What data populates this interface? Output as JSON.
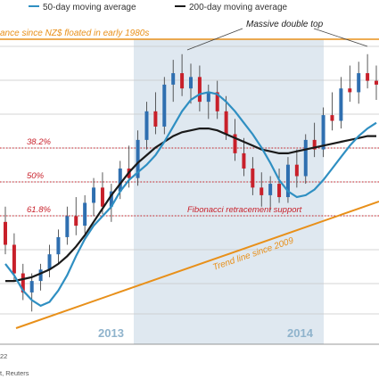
{
  "legend": {
    "ma50_label": "50-day moving average",
    "ma200_label": "200-day moving average"
  },
  "colors": {
    "ma50": "#2f8fc2",
    "ma200": "#1a1a1a",
    "up_candle": "#2f6fb0",
    "down_candle": "#c8202a",
    "accent": "#e8901a",
    "fib": "#c8202a",
    "shade": "#dfe8f0"
  },
  "annotations": {
    "high_since_float": "ance since NZ$ floated in early 1980s",
    "double_top": "Massive double top",
    "fib_support": "Fibonacci retracement support",
    "trend_line": "Trend line since 2009",
    "fib_382": "38.2%",
    "fib_50": "50%",
    "fib_618": "61.8%"
  },
  "years": [
    "2013",
    "2014"
  ],
  "footer": {
    "date_fragment": "22",
    "source_fragment": "t, Reuters"
  },
  "chart_data": {
    "type": "candlestick",
    "series": [
      {
        "name": "50-day moving average",
        "values": [
          0.79,
          0.784,
          0.776,
          0.771,
          0.768,
          0.77,
          0.776,
          0.784,
          0.794,
          0.803,
          0.81,
          0.815,
          0.82,
          0.828,
          0.834,
          0.838,
          0.842,
          0.847,
          0.854,
          0.862,
          0.87,
          0.876,
          0.879,
          0.88,
          0.879,
          0.875,
          0.87,
          0.864,
          0.858,
          0.851,
          0.843,
          0.834,
          0.828,
          0.825,
          0.826,
          0.829,
          0.834,
          0.84,
          0.846,
          0.852,
          0.857,
          0.861,
          0.864
        ]
      },
      {
        "name": "200-day moving average",
        "values": [
          0.781,
          0.781,
          0.782,
          0.783,
          0.785,
          0.787,
          0.79,
          0.794,
          0.799,
          0.805,
          0.812,
          0.819,
          0.826,
          0.832,
          0.838,
          0.843,
          0.847,
          0.851,
          0.854,
          0.857,
          0.859,
          0.86,
          0.861,
          0.861,
          0.86,
          0.858,
          0.856,
          0.854,
          0.852,
          0.85,
          0.849,
          0.848,
          0.848,
          0.849,
          0.85,
          0.851,
          0.852,
          0.853,
          0.854,
          0.855,
          0.856,
          0.857,
          0.857
        ]
      }
    ],
    "candles": [
      [
        0.812,
        0.82,
        0.795,
        0.8
      ],
      [
        0.8,
        0.806,
        0.781,
        0.785
      ],
      [
        0.785,
        0.79,
        0.771,
        0.775
      ],
      [
        0.775,
        0.785,
        0.765,
        0.781
      ],
      [
        0.781,
        0.79,
        0.776,
        0.787
      ],
      [
        0.787,
        0.8,
        0.783,
        0.795
      ],
      [
        0.795,
        0.808,
        0.79,
        0.804
      ],
      [
        0.804,
        0.82,
        0.8,
        0.815
      ],
      [
        0.815,
        0.825,
        0.805,
        0.81
      ],
      [
        0.81,
        0.826,
        0.806,
        0.822
      ],
      [
        0.822,
        0.835,
        0.815,
        0.83
      ],
      [
        0.83,
        0.838,
        0.816,
        0.82
      ],
      [
        0.82,
        0.832,
        0.812,
        0.828
      ],
      [
        0.828,
        0.844,
        0.824,
        0.84
      ],
      [
        0.84,
        0.852,
        0.83,
        0.835
      ],
      [
        0.835,
        0.86,
        0.831,
        0.855
      ],
      [
        0.855,
        0.875,
        0.85,
        0.87
      ],
      [
        0.87,
        0.88,
        0.858,
        0.862
      ],
      [
        0.862,
        0.888,
        0.858,
        0.884
      ],
      [
        0.884,
        0.897,
        0.875,
        0.89
      ],
      [
        0.89,
        0.9,
        0.878,
        0.882
      ],
      [
        0.882,
        0.895,
        0.874,
        0.888
      ],
      [
        0.888,
        0.894,
        0.87,
        0.875
      ],
      [
        0.875,
        0.884,
        0.866,
        0.88
      ],
      [
        0.88,
        0.886,
        0.866,
        0.87
      ],
      [
        0.87,
        0.878,
        0.855,
        0.858
      ],
      [
        0.858,
        0.866,
        0.844,
        0.848
      ],
      [
        0.848,
        0.856,
        0.836,
        0.84
      ],
      [
        0.84,
        0.846,
        0.826,
        0.83
      ],
      [
        0.83,
        0.838,
        0.82,
        0.826
      ],
      [
        0.826,
        0.836,
        0.818,
        0.832
      ],
      [
        0.832,
        0.84,
        0.822,
        0.825
      ],
      [
        0.825,
        0.846,
        0.822,
        0.842
      ],
      [
        0.842,
        0.85,
        0.83,
        0.836
      ],
      [
        0.836,
        0.858,
        0.832,
        0.855
      ],
      [
        0.855,
        0.864,
        0.846,
        0.85
      ],
      [
        0.85,
        0.872,
        0.846,
        0.868
      ],
      [
        0.868,
        0.88,
        0.86,
        0.865
      ],
      [
        0.865,
        0.888,
        0.861,
        0.882
      ],
      [
        0.882,
        0.894,
        0.875,
        0.88
      ],
      [
        0.88,
        0.896,
        0.874,
        0.89
      ],
      [
        0.89,
        0.9,
        0.882,
        0.886
      ],
      [
        0.886,
        0.894,
        0.876,
        0.884
      ]
    ],
    "reference_lines": [
      {
        "label": "38.2%",
        "value": 0.85
      },
      {
        "label": "50%",
        "value": 0.835
      },
      {
        "label": "61.8%",
        "value": 0.82
      }
    ],
    "high_line": 0.892,
    "shaded_periods": [
      "2013",
      "2014"
    ],
    "ylim": [
      0.76,
      0.905
    ]
  }
}
